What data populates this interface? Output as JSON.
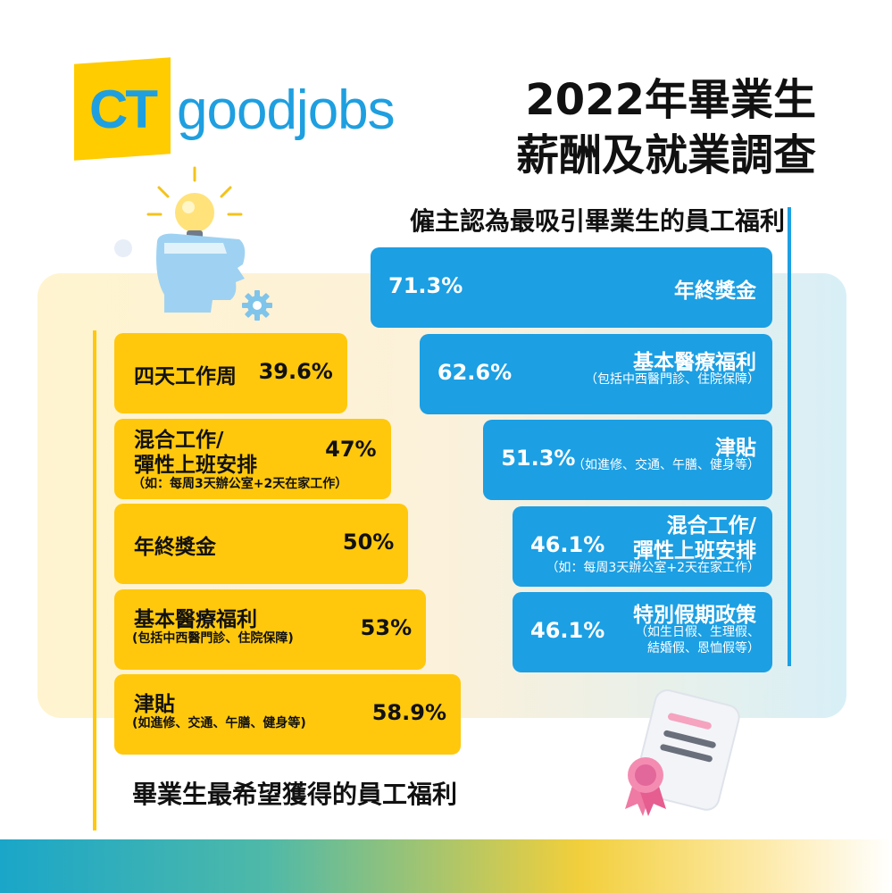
{
  "logo": {
    "brand_ct": "CT",
    "brand_word": "goodjobs"
  },
  "title": {
    "line1": "2022年畢業生",
    "line2": "薪酬及就業調查"
  },
  "chart_data": [
    {
      "type": "bar",
      "title": "僱主認為最吸引畢業生的員工福利",
      "categories": [
        "年終獎金",
        "基本醫療福利",
        "津貼",
        "混合工作/彈性上班安排",
        "特別假期政策"
      ],
      "values": [
        71.3,
        62.6,
        51.3,
        46.1,
        46.1
      ],
      "value_labels": [
        "71.3%",
        "62.6%",
        "51.3%",
        "46.1%",
        "46.1%"
      ],
      "label_lines": [
        [
          "年終獎金"
        ],
        [
          "基本醫療福利"
        ],
        [
          "津貼"
        ],
        [
          "混合工作/",
          "彈性上班安排"
        ],
        [
          "特別假期政策"
        ]
      ],
      "notes": [
        "",
        "（包括中西醫門診、住院保障）",
        "（如進修、交通、午膳、健身等）",
        "（如：每周3天辦公室+2天在家工作）",
        "（如生日假、生理假、\n結婚假、恩恤假等）"
      ],
      "unit": "%",
      "color": "#1c9fe3"
    },
    {
      "type": "bar",
      "title": "畢業生最希望獲得的員工福利",
      "categories": [
        "四天工作周",
        "混合工作/彈性上班安排",
        "年終獎金",
        "基本醫療福利",
        "津貼"
      ],
      "values": [
        39.6,
        47,
        50,
        53,
        58.9
      ],
      "value_labels": [
        "39.6%",
        "47%",
        "50%",
        "53%",
        "58.9%"
      ],
      "label_lines": [
        [
          "四天工作周"
        ],
        [
          "混合工作/",
          "彈性上班安排"
        ],
        [
          "年終獎金"
        ],
        [
          "基本醫療福利"
        ],
        [
          "津貼"
        ]
      ],
      "notes": [
        "",
        "（如：每周3天辦公室+2天在家工作）",
        "",
        "(包括中西醫門診、住院保障)",
        "(如進修、交通、午膳、健身等)"
      ],
      "unit": "%",
      "color": "#ffc80d"
    }
  ],
  "colors": {
    "blue": "#1c9fe3",
    "yellow": "#ffc80d",
    "brand_blue": "#1e9fe0",
    "brand_yellow": "#ffcc00"
  },
  "icons": [
    "lightbulb-icon",
    "head-icon",
    "gear-icon",
    "certificate-icon"
  ]
}
